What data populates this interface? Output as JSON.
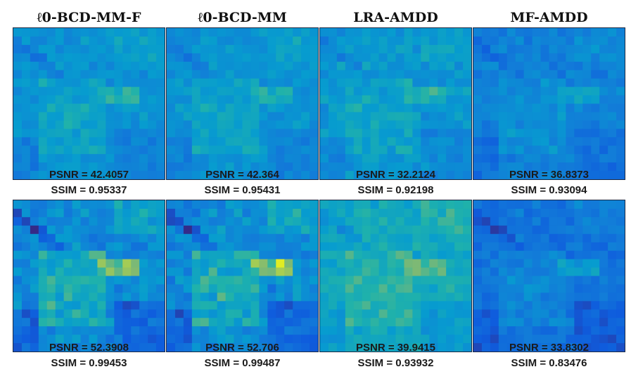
{
  "columns": [
    {
      "title": "ℓ0-BCD-MM-F"
    },
    {
      "title": "ℓ0-BCD-MM"
    },
    {
      "title": "LRA-AMDD"
    },
    {
      "title": "MF-AMDD"
    }
  ],
  "rows": [
    {
      "cells": [
        {
          "psnr": "PSNR = 42.4057",
          "ssim": "SSIM = 0.95337"
        },
        {
          "psnr": "PSNR = 42.364",
          "ssim": "SSIM = 0.95431"
        },
        {
          "psnr": "PSNR = 32.2124",
          "ssim": "SSIM = 0.92198"
        },
        {
          "psnr": "PSNR = 36.8373",
          "ssim": "SSIM = 0.93094"
        }
      ]
    },
    {
      "cells": [
        {
          "psnr": "PSNR = 52.3908",
          "ssim": "SSIM = 0.99453"
        },
        {
          "psnr": "PSNR = 52.706",
          "ssim": "SSIM = 0.99487"
        },
        {
          "psnr": "PSNR = 39.9415",
          "ssim": "SSIM = 0.93932"
        },
        {
          "psnr": "PSNR = 33.8302",
          "ssim": "SSIM = 0.83476"
        }
      ]
    }
  ],
  "colors": {
    "colormap_low": "#3a3fd6",
    "colormap_mid": "#21b3a8",
    "colormap_high": "#f2d23a"
  }
}
